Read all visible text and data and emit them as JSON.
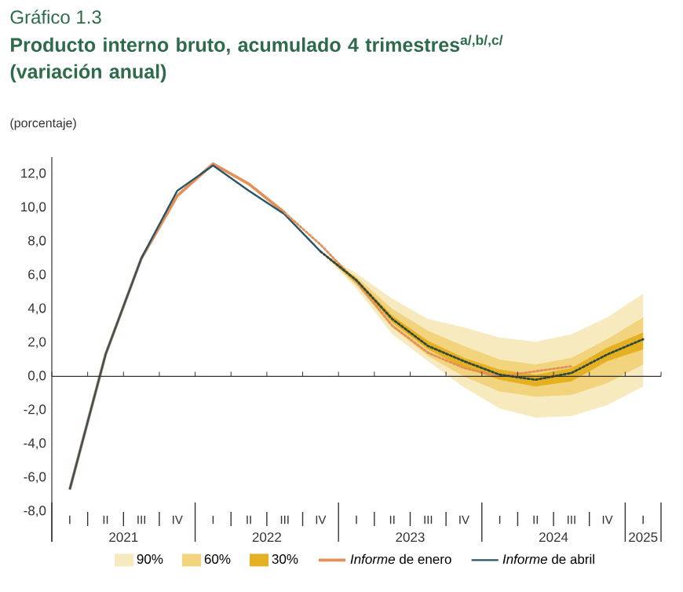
{
  "chart_data": {
    "type": "line",
    "title": "Gráfico 1.3",
    "subtitle": "Producto interno bruto, acumulado 4 trimestres$^{a/,b/,c/}$ (variación anual)",
    "ylabel": "(porcentaje)",
    "categories": [
      "I",
      "II",
      "III",
      "IV",
      "I",
      "II",
      "III",
      "IV",
      "I",
      "II",
      "III",
      "IV",
      "I",
      "II",
      "III",
      "IV",
      "I"
    ],
    "annotations": [
      "2021",
      "2022",
      "2023",
      "2024",
      "2025"
    ],
    "ylim": [
      -9.8,
      13
    ],
    "yticks": [
      {
        "value": -8,
        "label": "-8,0"
      },
      {
        "value": -6,
        "label": "-6,0"
      },
      {
        "value": -4,
        "label": "-4,0"
      },
      {
        "value": -2,
        "label": "-2,0"
      },
      {
        "value": 0,
        "label": "0,0"
      },
      {
        "value": 2,
        "label": "2,0"
      },
      {
        "value": 4,
        "label": "4,0"
      },
      {
        "value": 6,
        "label": "6,0"
      },
      {
        "value": 8,
        "label": "8,0"
      },
      {
        "value": 10,
        "label": "10,0"
      },
      {
        "value": 12,
        "label": "12,0"
      }
    ],
    "ref_lines": [
      {
        "axis": "y",
        "value": 0,
        "color": "#333333"
      }
    ],
    "legend": "bottom",
    "series": [
      {
        "name": "90%",
        "color": "#f8eabf",
        "values": [
          null,
          null,
          null,
          null,
          null,
          null,
          null,
          null,
          null,
          null,
          null,
          null,
          null,
          null,
          null,
          null,
          null
        ],
        "lower": [
          null,
          null,
          null,
          null,
          null,
          null,
          null,
          7.4,
          5.2,
          2.5,
          0.9,
          -0.65,
          -1.9,
          -2.45,
          -2.35,
          -1.7,
          -0.6
        ],
        "upper": [
          null,
          null,
          null,
          null,
          null,
          null,
          null,
          7.4,
          6.1,
          4.6,
          3.4,
          2.9,
          2.3,
          2.05,
          2.5,
          3.5,
          4.9
        ]
      },
      {
        "name": "60%",
        "color": "#f2d47e",
        "values": [
          null,
          null,
          null,
          null,
          null,
          null,
          null,
          null,
          null,
          null,
          null,
          null,
          null,
          null,
          null,
          null,
          null
        ],
        "lower": [
          null,
          null,
          null,
          null,
          null,
          null,
          null,
          7.4,
          5.4,
          2.9,
          1.2,
          0.0,
          -0.9,
          -1.2,
          -1.1,
          -0.4,
          0.7
        ],
        "upper": [
          null,
          null,
          null,
          null,
          null,
          null,
          null,
          7.4,
          5.9,
          4.0,
          2.7,
          1.8,
          1.0,
          0.7,
          1.1,
          2.2,
          3.5
        ]
      },
      {
        "name": "30%",
        "color": "#e6b023",
        "values": [
          null,
          null,
          null,
          null,
          null,
          null,
          null,
          null,
          null,
          null,
          null,
          null,
          null,
          null,
          null,
          null,
          null
        ],
        "lower": [
          null,
          null,
          null,
          null,
          null,
          null,
          null,
          7.4,
          5.5,
          3.2,
          1.6,
          0.5,
          -0.2,
          -0.6,
          -0.3,
          0.9,
          1.6
        ],
        "upper": [
          null,
          null,
          null,
          null,
          null,
          null,
          null,
          7.4,
          5.8,
          3.6,
          2.1,
          1.1,
          0.4,
          0.1,
          0.5,
          1.7,
          2.6
        ]
      },
      {
        "name": "*Informe* de enero",
        "color": "#e3905a",
        "line_style": "solid",
        "values": [
          -6.7,
          1.3,
          7.0,
          10.7,
          12.6,
          11.4,
          9.7,
          null,
          null,
          null,
          null,
          null,
          null,
          null,
          null,
          null,
          null
        ]
      },
      {
        "name": "*Informe* de abril",
        "color": "#2a5566",
        "line_style": "solid",
        "values": [
          -6.7,
          1.3,
          7.0,
          11.0,
          12.5,
          11.0,
          9.6,
          7.4,
          null,
          null,
          null,
          null,
          null,
          null,
          null,
          null,
          null
        ]
      },
      {
        "color": "#e3905a",
        "line_style": "dotted",
        "values": [
          null,
          null,
          null,
          null,
          null,
          null,
          9.7,
          7.8,
          5.6,
          3.0,
          1.4,
          0.5,
          0.0,
          0.3,
          0.6,
          null,
          null
        ]
      },
      {
        "color": "#2f4a3c",
        "line_style": "dotted",
        "values": [
          null,
          null,
          null,
          null,
          null,
          null,
          null,
          7.4,
          5.7,
          3.4,
          1.8,
          0.9,
          0.1,
          -0.2,
          0.2,
          1.3,
          2.2
        ]
      }
    ]
  }
}
